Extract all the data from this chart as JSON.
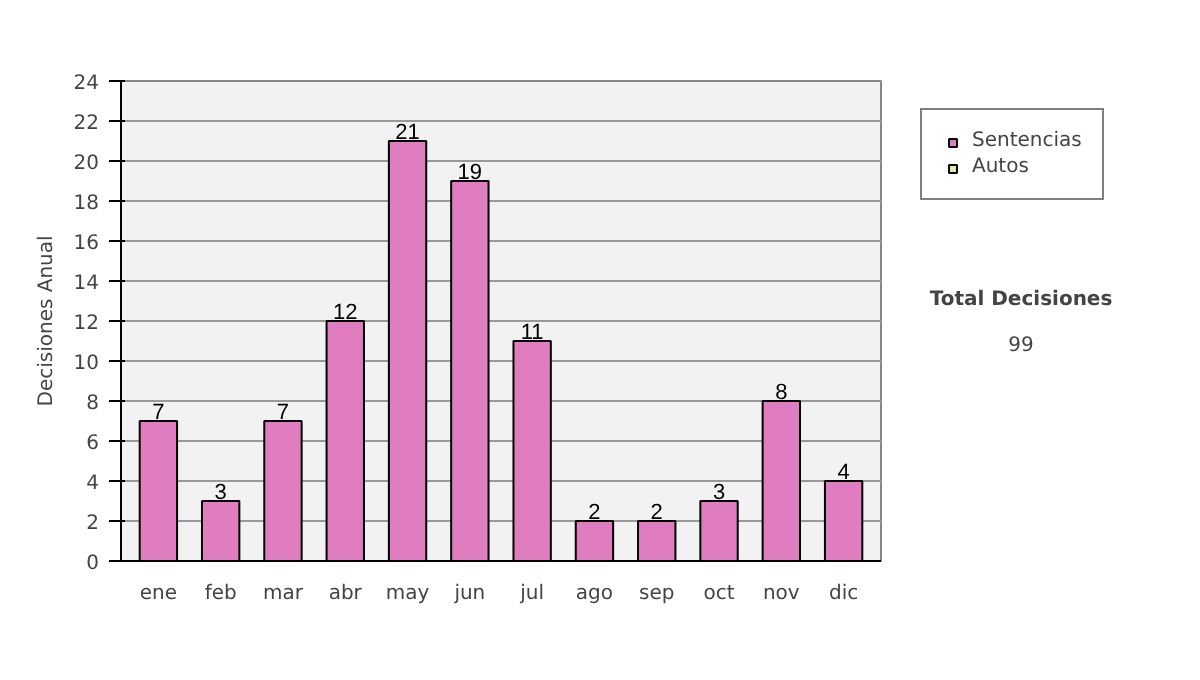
{
  "chart_data": {
    "type": "bar",
    "categories": [
      "ene",
      "feb",
      "mar",
      "abr",
      "may",
      "jun",
      "jul",
      "ago",
      "sep",
      "oct",
      "nov",
      "dic"
    ],
    "series": [
      {
        "name": "Sentencias",
        "color": "#e07cc0",
        "values": [
          7,
          3,
          7,
          12,
          21,
          19,
          11,
          2,
          2,
          3,
          8,
          4
        ]
      },
      {
        "name": "Autos",
        "color": "#e8e8a0",
        "values": [
          null,
          null,
          null,
          null,
          null,
          null,
          null,
          null,
          null,
          null,
          null,
          null
        ]
      }
    ],
    "ylabel": "Decisiones Anual",
    "ylim": [
      0,
      24
    ],
    "yticks": [
      0,
      2,
      4,
      6,
      8,
      10,
      12,
      14,
      16,
      18,
      20,
      22,
      24
    ],
    "grid": "y",
    "legend": "right",
    "data_labels": true,
    "annotations": [
      "Total Decisiones",
      "99"
    ]
  }
}
